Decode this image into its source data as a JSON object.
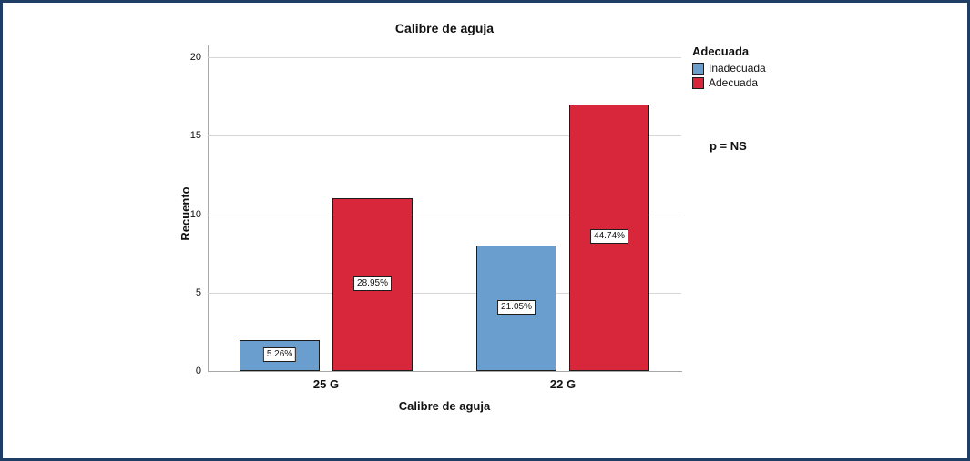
{
  "chart_data": {
    "type": "bar",
    "title": "Calibre de aguja",
    "xlabel": "Calibre de aguja",
    "ylabel": "Recuento",
    "legend_title": "Adecuada",
    "legend_position": "top-right",
    "annotation": "p = NS",
    "categories": [
      "25 G",
      "22 G"
    ],
    "series": [
      {
        "name": "Inadecuada",
        "color": "#6a9ecf",
        "values": [
          2,
          8
        ],
        "labels": [
          "5.26%",
          "21.05%"
        ]
      },
      {
        "name": "Adecuada",
        "color": "#d8263a",
        "values": [
          11,
          17
        ],
        "labels": [
          "28.95%",
          "44.74%"
        ]
      }
    ],
    "ylim": [
      0,
      20
    ],
    "yticks": [
      0,
      5,
      10,
      15,
      20
    ],
    "grid": true
  },
  "colors": {
    "frame_border": "#1f3e66",
    "gridline": "#d6d6d6",
    "axis_line": "#a8a8a8",
    "bar_border": "#1c1c1c"
  }
}
